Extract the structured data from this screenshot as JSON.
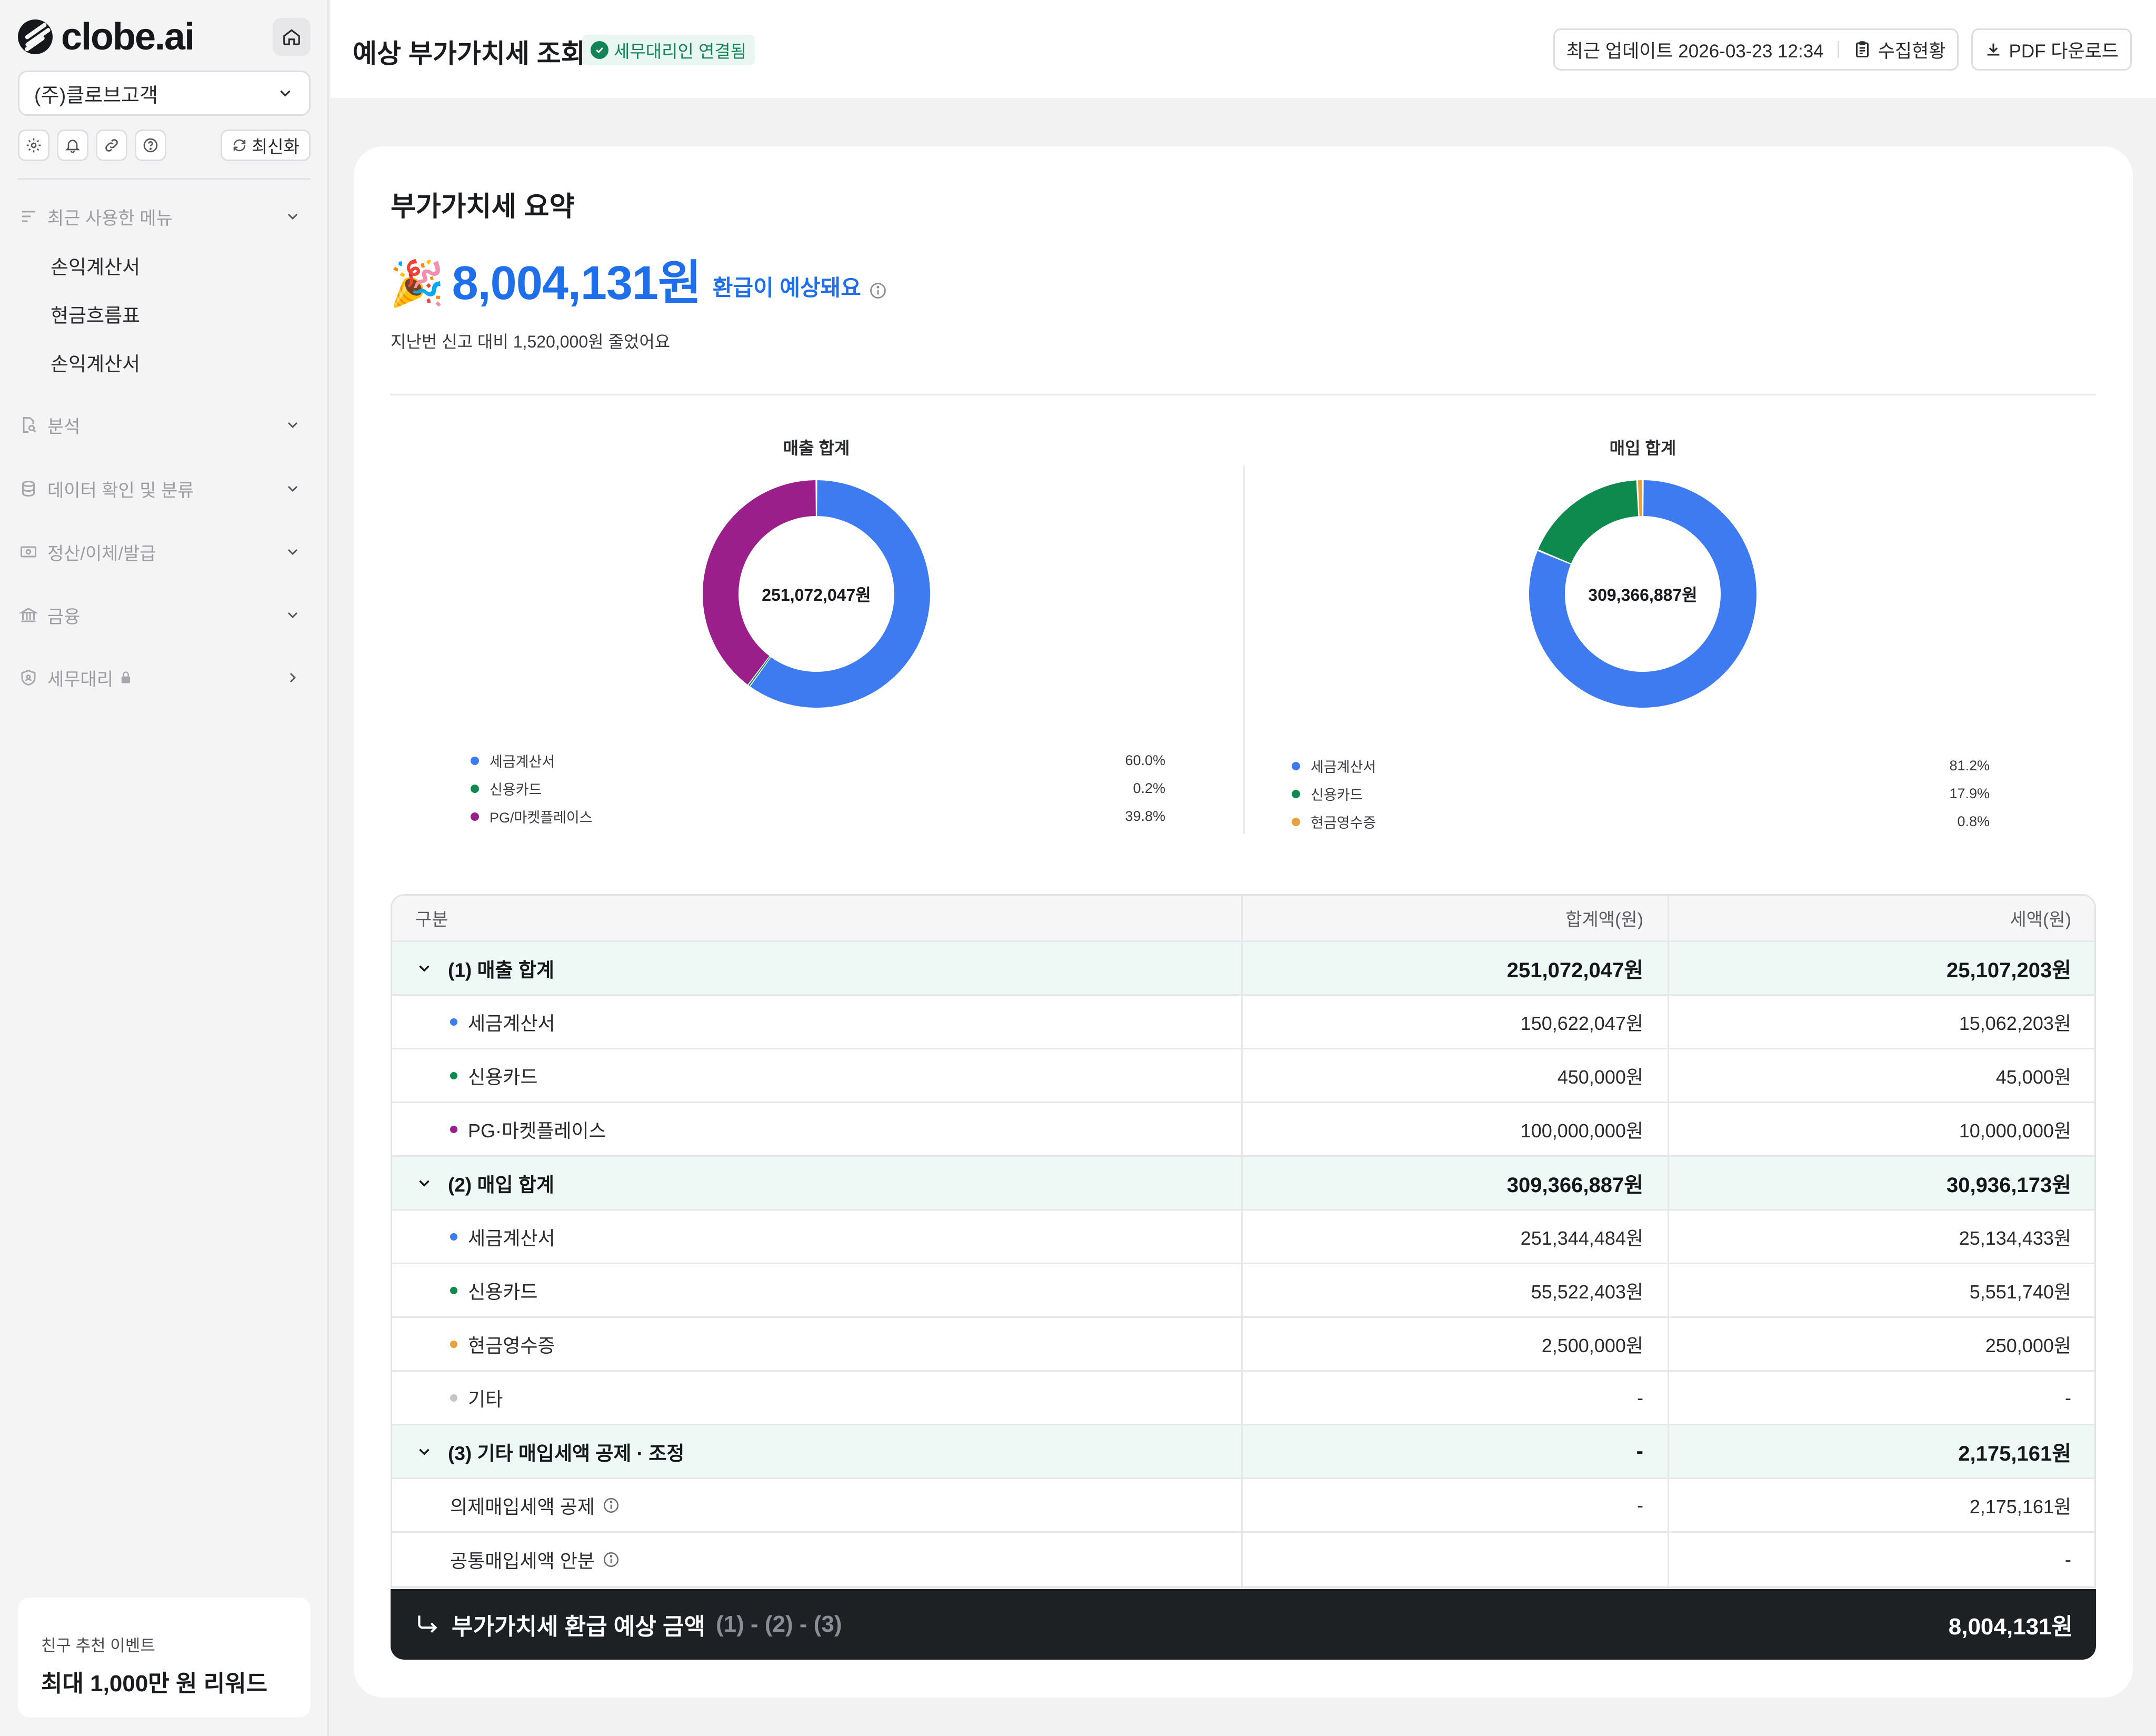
{
  "sidebar": {
    "logo_text": "clobe.ai",
    "company": "(주)클로브고객",
    "refresh_label": "최신화",
    "nav": {
      "recent_label": "최근 사용한 메뉴",
      "recent_items": [
        "손익계산서",
        "현금흐름표",
        "손익계산서"
      ],
      "analysis": "분석",
      "data_check": "데이터 확인 및 분류",
      "settlement": "정산/이체/발급",
      "finance": "금융",
      "tax_agent": "세무대리"
    },
    "promo": {
      "line1": "친구 추천 이벤트",
      "line2": "최대 1,000만 원 리워드"
    }
  },
  "header": {
    "title": "예상 부가가치세 조회",
    "badge": "세무대리인 연결됨",
    "updated": "최근 업데이트 2026-03-23 12:34",
    "collect_label": "수집현황",
    "pdf_label": "PDF 다운로드"
  },
  "summary": {
    "title": "부가가치세 요약",
    "emoji": "🎉",
    "refund_amount": "8,004,131원",
    "refund_label": "환급이 예상돼요",
    "compare_text": "지난번 신고 대비 1,520,000원 줄었어요"
  },
  "chart_data": [
    {
      "type": "pie",
      "title": "매출 합계",
      "center_label": "251,072,047원",
      "categories": [
        "세금계산서",
        "신용카드",
        "PG/마켓플레이스"
      ],
      "values": [
        60.0,
        0.2,
        39.8
      ],
      "value_labels": [
        "60.0%",
        "0.2%",
        "39.8%"
      ],
      "colors": [
        "#3e7bf0",
        "#0e8a4f",
        "#9a1f8a"
      ]
    },
    {
      "type": "pie",
      "title": "매입 합계",
      "center_label": "309,366,887원",
      "categories": [
        "세금계산서",
        "신용카드",
        "현금영수증"
      ],
      "values": [
        81.2,
        17.9,
        0.8
      ],
      "value_labels": [
        "81.2%",
        "17.9%",
        "0.8%"
      ],
      "colors": [
        "#3e7bf0",
        "#0e8a4f",
        "#e9a23b"
      ]
    }
  ],
  "table": {
    "headers": [
      "구분",
      "합계액(원)",
      "세액(원)"
    ],
    "groups": [
      {
        "label": "(1) 매출 합계",
        "total": "251,072,047원",
        "tax": "25,107,203원",
        "rows": [
          {
            "label": "세금계산서",
            "total": "150,622,047원",
            "tax": "15,062,203원",
            "color": "#3e7bf0"
          },
          {
            "label": "신용카드",
            "total": "450,000원",
            "tax": "45,000원",
            "color": "#0e8a4f"
          },
          {
            "label": "PG·마켓플레이스",
            "total": "100,000,000원",
            "tax": "10,000,000원",
            "color": "#9a1f8a"
          }
        ]
      },
      {
        "label": "(2) 매입 합계",
        "total": "309,366,887원",
        "tax": "30,936,173원",
        "rows": [
          {
            "label": "세금계산서",
            "total": "251,344,484원",
            "tax": "25,134,433원",
            "color": "#3e7bf0"
          },
          {
            "label": "신용카드",
            "total": "55,522,403원",
            "tax": "5,551,740원",
            "color": "#0e8a4f"
          },
          {
            "label": "현금영수증",
            "total": "2,500,000원",
            "tax": "250,000원",
            "color": "#e9a23b"
          },
          {
            "label": "기타",
            "total": "-",
            "tax": "-",
            "color": "#c4c5c9"
          }
        ]
      },
      {
        "label": "(3) 기타 매입세액 공제 · 조정",
        "total": "-",
        "tax": "2,175,161원",
        "rows": [
          {
            "label": "의제매입세액 공제",
            "total": "-",
            "tax": "2,175,161원"
          },
          {
            "label": "공통매입세액 안분",
            "total": "",
            "tax": "-"
          }
        ]
      }
    ],
    "total": {
      "label": "부가가치세 환급 예상 금액",
      "formula": "(1) - (2) - (3)",
      "value": "8,004,131원"
    }
  }
}
